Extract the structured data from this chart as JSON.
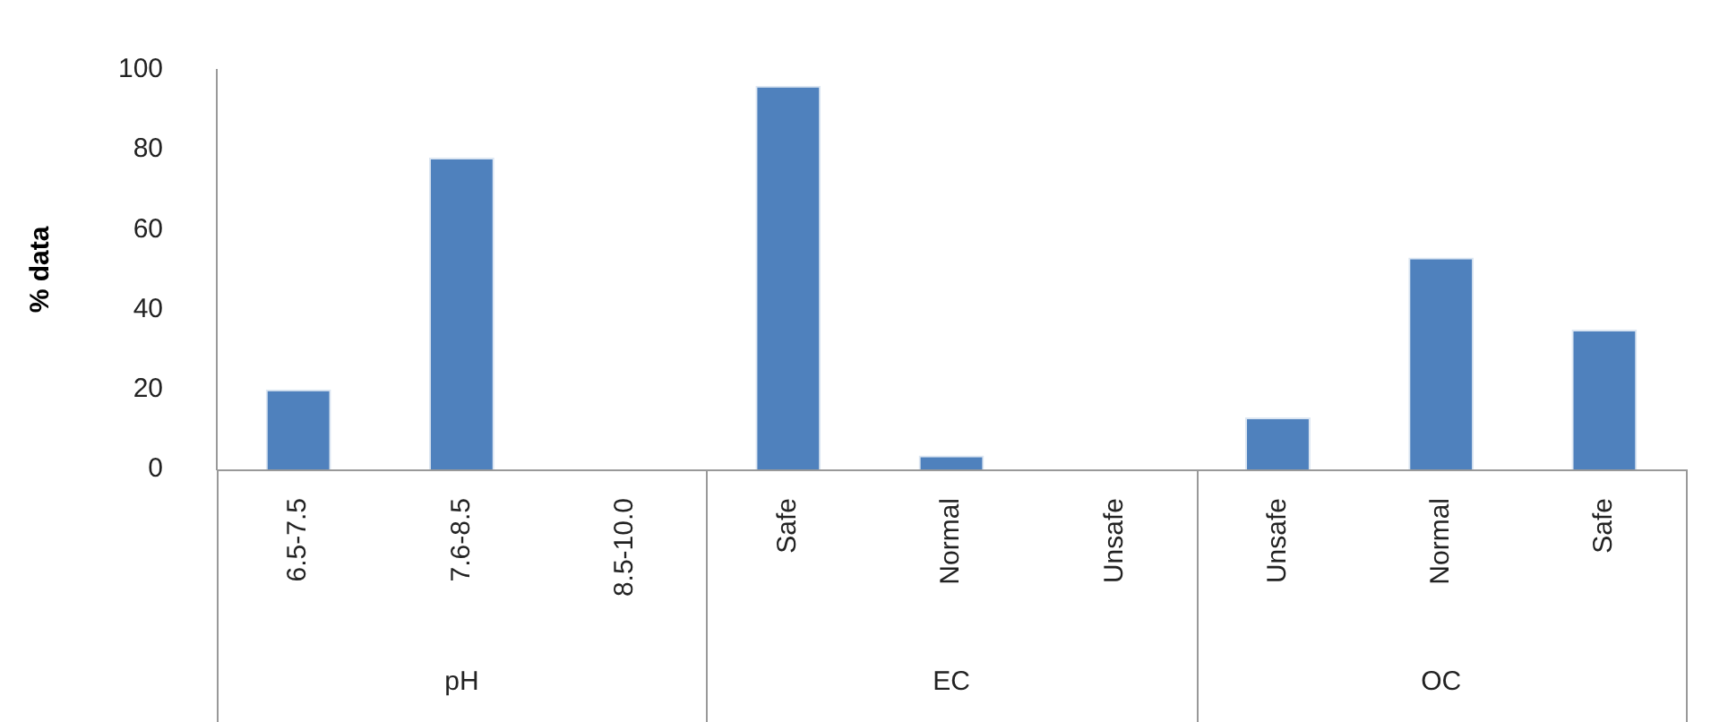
{
  "chart_data": {
    "type": "bar",
    "ylabel": "% data",
    "categories": [
      "6.5-7.5",
      "7.6-8.5",
      "8.5-10.0",
      "Safe",
      "Normal",
      "Unsafe",
      "Unsafe",
      "Normal",
      "Safe"
    ],
    "values": [
      20,
      78,
      0,
      96,
      3.5,
      0,
      13,
      53,
      35
    ],
    "color": "#4f81bd",
    "ylim": [
      0,
      100
    ],
    "yticks": [
      0,
      20,
      40,
      60,
      80,
      100
    ],
    "grid": false,
    "legend": false,
    "annotations": [
      "pH",
      "EC",
      "OC"
    ]
  }
}
